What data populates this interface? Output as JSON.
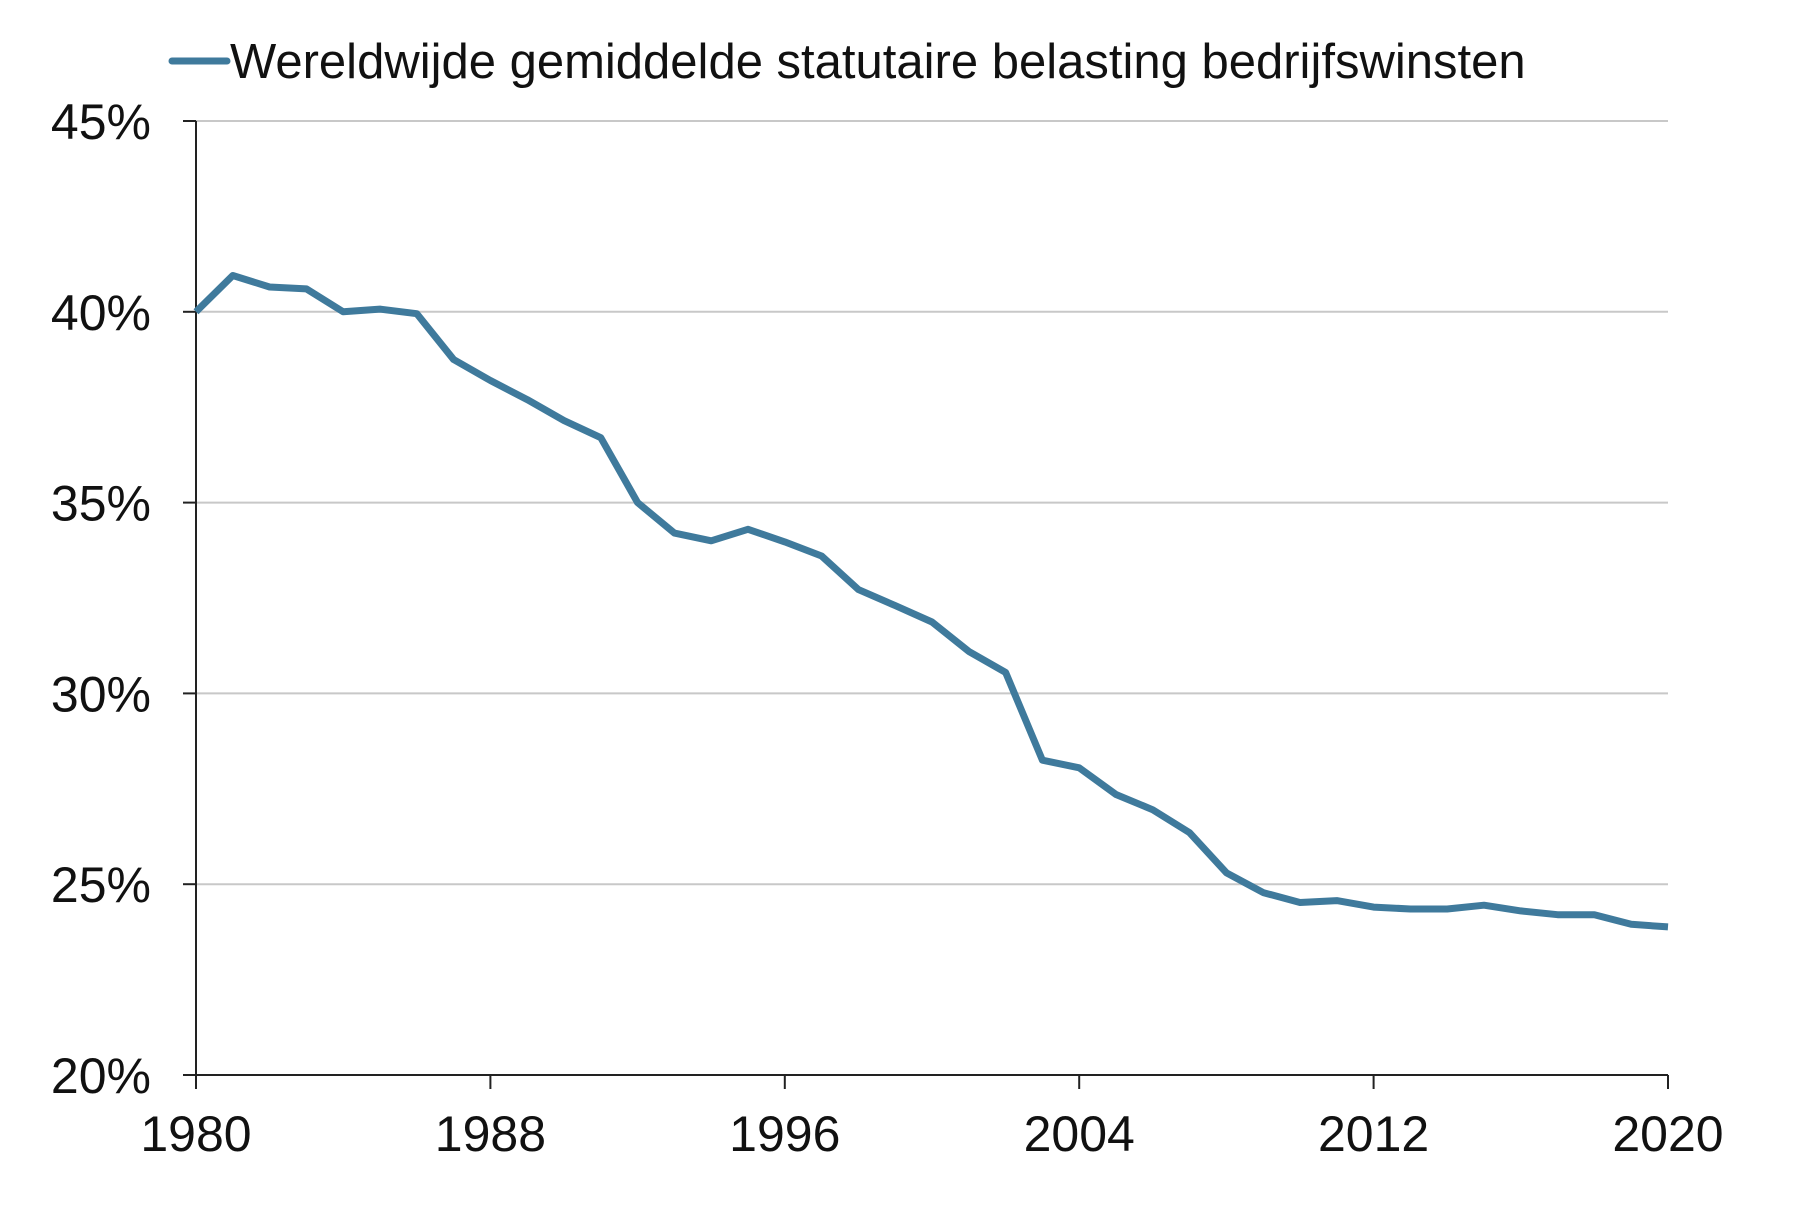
{
  "chart_data": {
    "type": "line",
    "title": "",
    "xlabel": "",
    "ylabel": "",
    "xlim": [
      1980,
      2020
    ],
    "ylim": [
      20,
      45
    ],
    "x_ticks": [
      1980,
      1988,
      1996,
      2004,
      2012,
      2020
    ],
    "y_ticks": [
      20,
      25,
      30,
      35,
      40,
      45
    ],
    "y_tick_labels": [
      "20%",
      "25%",
      "30%",
      "35%",
      "40%",
      "45%"
    ],
    "x_tick_labels": [
      "1980",
      "1988",
      "1996",
      "2004",
      "2012",
      "2020"
    ],
    "grid": "horizontal",
    "legend_position": "top",
    "series": [
      {
        "name": "Wereldwijde gemiddelde statutaire belasting bedrijfswinsten",
        "color": "#3f7a9c",
        "x": [
          1980,
          1981,
          1982,
          1983,
          1984,
          1985,
          1986,
          1987,
          1988,
          1989,
          1990,
          1991,
          1992,
          1993,
          1994,
          1995,
          1996,
          1997,
          1998,
          1999,
          2000,
          2001,
          2002,
          2003,
          2004,
          2005,
          2006,
          2007,
          2008,
          2009,
          2010,
          2011,
          2012,
          2013,
          2014,
          2015,
          2016,
          2017,
          2018,
          2019,
          2020
        ],
        "values": [
          40.0,
          40.95,
          40.65,
          40.6,
          40.0,
          40.07,
          39.95,
          38.75,
          38.2,
          37.7,
          37.15,
          36.7,
          35.0,
          34.2,
          34.0,
          34.3,
          33.97,
          33.6,
          32.72,
          32.3,
          31.87,
          31.1,
          30.55,
          28.25,
          28.05,
          27.35,
          26.95,
          26.35,
          25.3,
          24.78,
          24.52,
          24.57,
          24.4,
          24.35,
          24.35,
          24.45,
          24.3,
          24.2,
          24.2,
          23.95,
          23.88
        ]
      }
    ]
  }
}
